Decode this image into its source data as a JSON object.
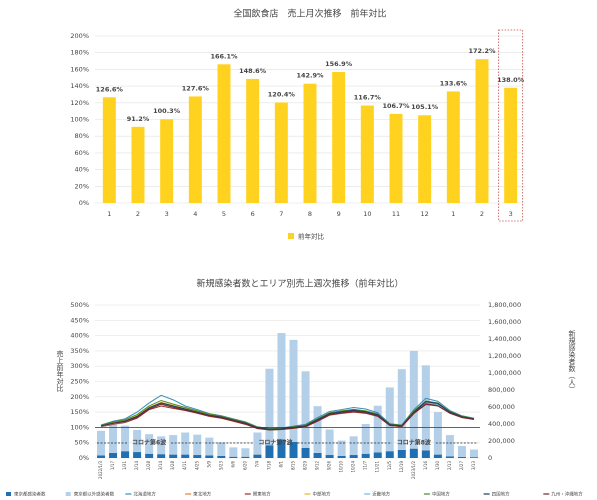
{
  "chart_data": [
    {
      "type": "bar",
      "title": "全国飲食店　売上月次推移　前年対比",
      "categories": [
        "1",
        "2",
        "3",
        "4",
        "5",
        "6",
        "7",
        "8",
        "9",
        "10",
        "11",
        "12",
        "1",
        "2",
        "3"
      ],
      "series": [
        {
          "name": "前年対比",
          "color": "#ffd21f",
          "values": [
            126.6,
            91.2,
            100.3,
            127.6,
            166.1,
            148.6,
            120.4,
            142.9,
            156.9,
            116.7,
            106.7,
            105.1,
            133.6,
            172.2,
            138.0
          ],
          "value_labels": [
            "126.6%",
            "91.2%",
            "100.3%",
            "127.6%",
            "166.1%",
            "148.6%",
            "120.4%",
            "142.9%",
            "156.9%",
            "116.7%",
            "106.7%",
            "105.1%",
            "133.6%",
            "172.2%",
            "138.0%"
          ]
        }
      ],
      "ylim": [
        0,
        200
      ],
      "yticks": [
        {
          "value": 0,
          "label": "0%"
        },
        {
          "value": 20,
          "label": "20%"
        },
        {
          "value": 40,
          "label": "40%"
        },
        {
          "value": 60,
          "label": "60%"
        },
        {
          "value": 80,
          "label": "80%"
        },
        {
          "value": 100,
          "label": "100%"
        },
        {
          "value": 120,
          "label": "120%"
        },
        {
          "value": 140,
          "label": "140%"
        },
        {
          "value": 160,
          "label": "160%"
        },
        {
          "value": 180,
          "label": "180%"
        },
        {
          "value": 200,
          "label": "200%"
        }
      ],
      "grid": true,
      "legend": "bottom"
    },
    {
      "type": "combo",
      "title": "新規感染者数とエリア別売上週次推移（前年対比）",
      "ylabel": "売上前年対比",
      "y2label": "新規感染者数（人）",
      "annotations": [
        "コロナ第6波",
        "コロナ第7波",
        "コロナ第8波"
      ],
      "categories": [
        "2022/1/3",
        "1/17",
        "1/31",
        "2/14",
        "2/28",
        "3/14",
        "3/28",
        "4/11",
        "4/25",
        "5/9",
        "5/23",
        "6/6",
        "6/20",
        "7/4",
        "7/18",
        "8/1",
        "8/15",
        "8/29",
        "9/12",
        "9/26",
        "10/10",
        "10/24",
        "11/7",
        "11/21",
        "12/5",
        "12/19",
        "2023/1/2",
        "1/16",
        "1/30",
        "2/13",
        "2/27",
        "3/13"
      ],
      "stacked": true,
      "series": [
        {
          "name": "東京都感染者数",
          "type": "bar",
          "axis": "y2",
          "color": "#1f6fb2",
          "values": [
            30000,
            60000,
            80000,
            70000,
            50000,
            45000,
            40000,
            40000,
            35000,
            30000,
            25000,
            15000,
            15000,
            40000,
            150000,
            220000,
            190000,
            120000,
            60000,
            35000,
            25000,
            35000,
            50000,
            65000,
            80000,
            95000,
            110000,
            90000,
            40000,
            20000,
            12000,
            10000
          ]
        },
        {
          "name": "東京都以外感染者数",
          "type": "bar",
          "axis": "y2",
          "color": "#b4cfe8",
          "values": [
            290000,
            330000,
            300000,
            260000,
            230000,
            210000,
            230000,
            260000,
            240000,
            210000,
            160000,
            110000,
            100000,
            260000,
            900000,
            1250000,
            1200000,
            900000,
            550000,
            300000,
            180000,
            220000,
            350000,
            550000,
            750000,
            950000,
            1150000,
            1000000,
            500000,
            250000,
            130000,
            90000
          ]
        },
        {
          "name": "北海道地方",
          "type": "line",
          "color": "#3a8fb7",
          "values": [
            108,
            120,
            128,
            150,
            180,
            205,
            190,
            170,
            158,
            145,
            138,
            128,
            118,
            102,
            96,
            98,
            104,
            110,
            132,
            152,
            158,
            165,
            160,
            148,
            112,
            108,
            158,
            195,
            185,
            155,
            138,
            130
          ]
        },
        {
          "name": "東北地方",
          "type": "line",
          "color": "#ed7d31",
          "values": [
            104,
            112,
            118,
            132,
            160,
            175,
            165,
            158,
            148,
            138,
            132,
            122,
            112,
            98,
            94,
            94,
            99,
            104,
            124,
            142,
            148,
            152,
            148,
            138,
            108,
            104,
            148,
            178,
            172,
            148,
            134,
            127
          ]
        },
        {
          "name": "関東地方",
          "type": "line",
          "color": "#9e2a2b",
          "values": [
            102,
            110,
            116,
            130,
            158,
            170,
            162,
            155,
            146,
            136,
            130,
            120,
            110,
            96,
            92,
            93,
            97,
            102,
            120,
            140,
            146,
            150,
            146,
            136,
            106,
            102,
            145,
            175,
            170,
            146,
            132,
            126
          ]
        },
        {
          "name": "中部地方",
          "type": "line",
          "color": "#e8b923",
          "values": [
            106,
            116,
            122,
            138,
            166,
            182,
            172,
            162,
            152,
            142,
            136,
            126,
            116,
            100,
            95,
            96,
            101,
            106,
            126,
            146,
            152,
            157,
            152,
            142,
            110,
            106,
            152,
            182,
            176,
            150,
            136,
            128
          ]
        },
        {
          "name": "近畿地方",
          "type": "line",
          "color": "#6fb7e0",
          "values": [
            103,
            112,
            118,
            134,
            162,
            178,
            168,
            158,
            149,
            139,
            133,
            123,
            113,
            99,
            93,
            94,
            99,
            104,
            123,
            143,
            149,
            154,
            149,
            139,
            108,
            104,
            149,
            180,
            174,
            149,
            134,
            127
          ]
        },
        {
          "name": "中国地方",
          "type": "line",
          "color": "#4a8c2a",
          "values": [
            107,
            118,
            125,
            142,
            170,
            188,
            176,
            165,
            154,
            144,
            137,
            127,
            117,
            101,
            96,
            97,
            102,
            108,
            128,
            148,
            154,
            159,
            154,
            144,
            111,
            107,
            154,
            186,
            180,
            152,
            137,
            129
          ]
        },
        {
          "name": "四国地方",
          "type": "line",
          "color": "#1f3864",
          "values": [
            105,
            114,
            121,
            136,
            164,
            180,
            170,
            160,
            150,
            140,
            134,
            124,
            114,
            99,
            94,
            95,
            100,
            105,
            125,
            145,
            151,
            156,
            151,
            141,
            109,
            105,
            150,
            184,
            178,
            150,
            135,
            128
          ]
        },
        {
          "name": "九州・沖縄地方",
          "type": "line",
          "color": "#6b2c2c",
          "values": [
            104,
            113,
            119,
            133,
            160,
            176,
            166,
            157,
            148,
            138,
            132,
            122,
            112,
            97,
            92,
            93,
            98,
            103,
            122,
            142,
            148,
            153,
            148,
            138,
            107,
            103,
            147,
            177,
            171,
            147,
            133,
            126
          ]
        }
      ],
      "ylim": [
        0,
        500
      ],
      "yticks": [
        {
          "value": 0,
          "label": "0%"
        },
        {
          "value": 50,
          "label": "50%"
        },
        {
          "value": 100,
          "label": "100%"
        },
        {
          "value": 150,
          "label": "150%"
        },
        {
          "value": 200,
          "label": "200%"
        },
        {
          "value": 250,
          "label": "250%"
        },
        {
          "value": 300,
          "label": "300%"
        },
        {
          "value": 350,
          "label": "350%"
        },
        {
          "value": 400,
          "label": "400%"
        },
        {
          "value": 450,
          "label": "450%"
        },
        {
          "value": 500,
          "label": "500%"
        }
      ],
      "y2lim": [
        0,
        1800000
      ],
      "y2ticks": [
        0,
        {
          "value": 200000,
          "label": "200,000"
        },
        {
          "value": 400000,
          "label": "400,000"
        },
        {
          "value": 600000,
          "label": "600,000"
        },
        {
          "value": 800000,
          "label": "800,000"
        },
        {
          "value": 1000000,
          "label": "1,000,000"
        },
        {
          "value": 1200000,
          "label": "1,200,000"
        },
        {
          "value": 1400000,
          "label": "1,400,000"
        },
        {
          "value": 1600000,
          "label": "1,600,000"
        },
        {
          "value": 1800000,
          "label": "1,800,000"
        }
      ],
      "grid": true,
      "legend": "bottom"
    }
  ]
}
